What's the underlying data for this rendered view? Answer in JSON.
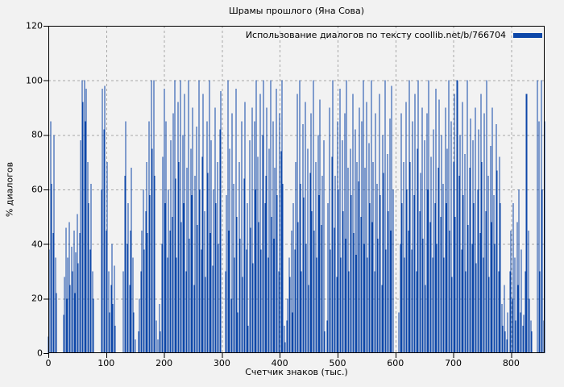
{
  "chart_data": {
    "type": "bar",
    "style": "impulses",
    "title": "Шрамы прошлого (Яна Сова)",
    "legend": "Использование диалогов по тексту coollib.net/b/766704",
    "legend_position": "top-right-inside",
    "xlabel": "Счетчик знаков (тыс.)",
    "ylabel": "% диалогов",
    "xlim": [
      0,
      858
    ],
    "ylim": [
      0,
      120
    ],
    "grid": true,
    "y_ticks": [
      0,
      20,
      40,
      60,
      80,
      100,
      120
    ],
    "x_ticks": [
      0,
      100,
      200,
      300,
      400,
      500,
      600,
      700,
      800
    ],
    "series_color": "#0d47a8",
    "grid_color": "#a8a8a8",
    "background_color": "#f2f2f2",
    "x_start": 0,
    "x_step": 2,
    "values": [
      6,
      38,
      85,
      62,
      44,
      80,
      35,
      22,
      0,
      0,
      0,
      0,
      0,
      14,
      28,
      46,
      20,
      35,
      48,
      25,
      39,
      30,
      45,
      22,
      37,
      51,
      33,
      44,
      78,
      100,
      92,
      100,
      85,
      97,
      70,
      55,
      38,
      62,
      30,
      20,
      0,
      0,
      0,
      0,
      0,
      0,
      60,
      97,
      82,
      98,
      45,
      70,
      30,
      15,
      25,
      40,
      18,
      32,
      10,
      0,
      0,
      0,
      0,
      0,
      0,
      30,
      65,
      85,
      40,
      55,
      25,
      45,
      68,
      35,
      15,
      5,
      0,
      0,
      8,
      20,
      30,
      45,
      60,
      38,
      52,
      70,
      44,
      85,
      58,
      100,
      75,
      100,
      65,
      12,
      0,
      5,
      18,
      8,
      40,
      72,
      97,
      55,
      85,
      35,
      60,
      45,
      78,
      50,
      88,
      100,
      64,
      35,
      92,
      70,
      100,
      48,
      80,
      55,
      95,
      30,
      68,
      100,
      42,
      75,
      58,
      90,
      25,
      65,
      83,
      47,
      100,
      60,
      38,
      72,
      95,
      52,
      28,
      85,
      66,
      100,
      44,
      78,
      32,
      60,
      90,
      55,
      70,
      40,
      82,
      96,
      0,
      0,
      0,
      30,
      58,
      100,
      45,
      75,
      20,
      88,
      62,
      35,
      97,
      50,
      15,
      70,
      42,
      85,
      28,
      64,
      92,
      38,
      55,
      10,
      78,
      46,
      90,
      33,
      85,
      60,
      100,
      72,
      48,
      95,
      38,
      80,
      100,
      55,
      65,
      90,
      35,
      75,
      100,
      50,
      85,
      42,
      68,
      97,
      58,
      30,
      88,
      74,
      100,
      62,
      10,
      4,
      12,
      20,
      35,
      28,
      45,
      15,
      55,
      38,
      70,
      95,
      48,
      100,
      62,
      30,
      84,
      57,
      92,
      40,
      75,
      25,
      66,
      88,
      52,
      100,
      45,
      70,
      35,
      80,
      58,
      93,
      47,
      65,
      78,
      8,
      0,
      12,
      55,
      90,
      38,
      72,
      100,
      46,
      65,
      28,
      85,
      60,
      97,
      35,
      78,
      52,
      88,
      42,
      100,
      68,
      30,
      75,
      58,
      95,
      44,
      82,
      36,
      70,
      63,
      90,
      50,
      85,
      100,
      40,
      68,
      92,
      35,
      77,
      55,
      100,
      48,
      70,
      30,
      88,
      62,
      42,
      95,
      58,
      25,
      80,
      66,
      100,
      38,
      73,
      52,
      86,
      45,
      98,
      60,
      0,
      0,
      0,
      0,
      15,
      40,
      88,
      55,
      70,
      35,
      92,
      60,
      45,
      100,
      70,
      38,
      85,
      58,
      95,
      30,
      75,
      100,
      52,
      66,
      90,
      42,
      78,
      25,
      88,
      60,
      100,
      48,
      72,
      35,
      82,
      55,
      97,
      40,
      68,
      93,
      50,
      80,
      62,
      35,
      90,
      55,
      75,
      100,
      45,
      85,
      28,
      70,
      95,
      50,
      100,
      100,
      65,
      80,
      38,
      92,
      58,
      73,
      30,
      100,
      47,
      68,
      86,
      40,
      78,
      55,
      90,
      33,
      60,
      82,
      44,
      95,
      70,
      35,
      88,
      52,
      100,
      65,
      28,
      76,
      48,
      90,
      58,
      40,
      84,
      67,
      30,
      72,
      55,
      18,
      10,
      25,
      8,
      5,
      15,
      0,
      30,
      45,
      20,
      55,
      35,
      12,
      48,
      25,
      60,
      15,
      38,
      10,
      14,
      30,
      95,
      95,
      45,
      20,
      12,
      8,
      0,
      0,
      0,
      0,
      100,
      85,
      30,
      100,
      60,
      12,
      85
    ]
  }
}
